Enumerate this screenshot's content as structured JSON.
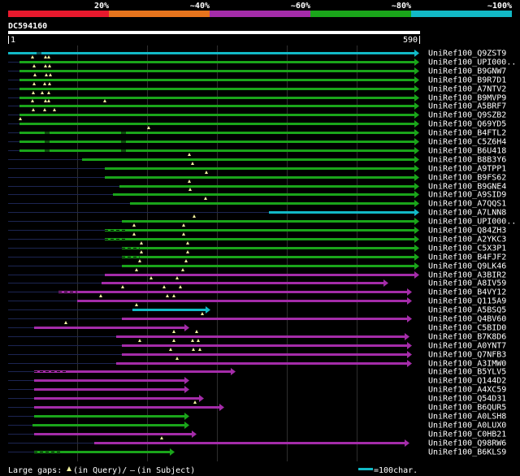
{
  "legend": {
    "scale_labels": [
      "20%",
      "~40%",
      "~60%",
      "~80%",
      "~100%"
    ],
    "scale_colors": [
      "#e8192d",
      "#e6741d",
      "#a42ca9",
      "#1aa51a",
      "#12b9c6"
    ]
  },
  "query": {
    "name": "DC594160",
    "start": "1",
    "end": "590"
  },
  "colors": {
    "cyan": "#12b9c6",
    "green": "#1aa51a",
    "magenta": "#a42ca9",
    "dim": "#1c2552",
    "grid": "#2e2e2e",
    "marker": "#f2f2a0"
  },
  "hits": [
    {
      "label": "UniRef100_Q9ZST9",
      "color": "cyan",
      "start": 10,
      "end": 516,
      "dim": [],
      "gaps": [],
      "tick": [
        48
      ],
      "tri": []
    },
    {
      "label": "UniRef100_UPI000..",
      "color": "green",
      "start": 24,
      "end": 516,
      "dim": [
        [
          10,
          24
        ]
      ],
      "gaps": [],
      "tick": [],
      "tri": [
        40,
        56,
        60
      ]
    },
    {
      "label": "UniRef100_B9GNW7",
      "color": "green",
      "start": 24,
      "end": 516,
      "dim": [
        [
          10,
          24
        ]
      ],
      "gaps": [],
      "tick": [],
      "tri": [
        42,
        56,
        61
      ]
    },
    {
      "label": "UniRef100_B9R7D1",
      "color": "green",
      "start": 24,
      "end": 516,
      "dim": [
        [
          10,
          24
        ]
      ],
      "gaps": [],
      "tick": [],
      "tri": [
        43,
        57,
        62
      ]
    },
    {
      "label": "UniRef100_A7NTV2",
      "color": "green",
      "start": 24,
      "end": 516,
      "dim": [
        [
          10,
          24
        ]
      ],
      "gaps": [],
      "tick": [],
      "tri": [
        42,
        55,
        61
      ]
    },
    {
      "label": "UniRef100_B9MVP9",
      "color": "green",
      "start": 24,
      "end": 516,
      "dim": [
        [
          10,
          24
        ]
      ],
      "gaps": [],
      "tick": [],
      "tri": [
        41,
        52,
        60
      ]
    },
    {
      "label": "UniRef100_A5BRF7",
      "color": "green",
      "start": 24,
      "end": 516,
      "dim": [
        [
          10,
          24
        ]
      ],
      "gaps": [],
      "tick": [],
      "tri": [
        40,
        56,
        60,
        129
      ]
    },
    {
      "label": "UniRef100_Q9SZB2",
      "color": "green",
      "start": 24,
      "end": 516,
      "dim": [
        [
          10,
          24
        ]
      ],
      "gaps": [],
      "tick": [],
      "tri": [
        41,
        55,
        67
      ]
    },
    {
      "label": "UniRef100_Q69YD5",
      "color": "green",
      "start": 24,
      "end": 516,
      "dim": [
        [
          10,
          24
        ]
      ],
      "gaps": [],
      "tick": [],
      "tri": [
        25
      ]
    },
    {
      "label": "UniRef100_B4FTL2",
      "color": "green",
      "start": 24,
      "end": 516,
      "dim": [
        [
          10,
          24
        ]
      ],
      "gaps": [],
      "tick": [
        58,
        152
      ],
      "tri": [
        183
      ]
    },
    {
      "label": "UniRef100_C5Z6H4",
      "color": "green",
      "start": 24,
      "end": 516,
      "dim": [
        [
          10,
          24
        ]
      ],
      "gaps": [],
      "tick": [
        58,
        152
      ],
      "tri": []
    },
    {
      "label": "UniRef100_B6U418",
      "color": "green",
      "start": 24,
      "end": 516,
      "dim": [
        [
          10,
          24
        ]
      ],
      "gaps": [],
      "tick": [
        58,
        152
      ],
      "tri": []
    },
    {
      "label": "UniRef100_B8B3Y6",
      "color": "green",
      "start": 101,
      "end": 516,
      "dim": [
        [
          10,
          101
        ]
      ],
      "gaps": [],
      "tick": [],
      "tri": [
        233
      ]
    },
    {
      "label": "UniRef100_A9TPP1",
      "color": "green",
      "start": 129,
      "end": 516,
      "dim": [
        [
          10,
          129
        ]
      ],
      "gaps": [],
      "tick": [],
      "tri": [
        237
      ]
    },
    {
      "label": "UniRef100_B9FS62",
      "color": "green",
      "start": 129,
      "end": 516,
      "dim": [
        [
          10,
          129
        ]
      ],
      "gaps": [],
      "tick": [],
      "tri": [
        254
      ]
    },
    {
      "label": "UniRef100_B9GNE4",
      "color": "green",
      "start": 147,
      "end": 516,
      "dim": [
        [
          10,
          147
        ]
      ],
      "gaps": [],
      "tick": [],
      "tri": [
        233
      ]
    },
    {
      "label": "UniRef100_A9SID9",
      "color": "green",
      "start": 139,
      "end": 516,
      "dim": [
        [
          10,
          139
        ]
      ],
      "gaps": [],
      "tick": [],
      "tri": [
        234
      ]
    },
    {
      "label": "UniRef100_A7QQS1",
      "color": "green",
      "start": 160,
      "end": 516,
      "dim": [
        [
          10,
          160
        ]
      ],
      "gaps": [],
      "tick": [],
      "tri": [
        253
      ]
    },
    {
      "label": "UniRef100_A7LNN8",
      "color": "cyan",
      "start": 331,
      "end": 516,
      "dim": [
        [
          10,
          331
        ]
      ],
      "gaps": [],
      "tick": [],
      "tri": []
    },
    {
      "label": "UniRef100_UPI000..",
      "color": "green",
      "start": 150,
      "end": 516,
      "dim": [
        [
          10,
          150
        ]
      ],
      "gaps": [],
      "tick": [],
      "tri": [
        239
      ]
    },
    {
      "label": "UniRef100_Q84ZH3",
      "color": "green",
      "start": 129,
      "end": 516,
      "dim": [
        [
          10,
          129
        ]
      ],
      "gaps": [
        [
          129,
          157
        ]
      ],
      "tick": [],
      "tri": [
        165,
        226
      ]
    },
    {
      "label": "UniRef100_A2YKC3",
      "color": "green",
      "start": 129,
      "end": 516,
      "dim": [
        [
          10,
          129
        ]
      ],
      "gaps": [
        [
          129,
          157
        ]
      ],
      "tick": [],
      "tri": [
        165,
        226
      ]
    },
    {
      "label": "UniRef100_C5X3P1",
      "color": "green",
      "start": 150,
      "end": 516,
      "dim": [
        [
          10,
          150
        ]
      ],
      "gaps": [
        [
          150,
          172
        ]
      ],
      "tick": [],
      "tri": [
        174,
        231
      ]
    },
    {
      "label": "UniRef100_B4FJF2",
      "color": "green",
      "start": 150,
      "end": 516,
      "dim": [
        [
          10,
          150
        ]
      ],
      "gaps": [
        [
          150,
          172
        ]
      ],
      "tick": [],
      "tri": [
        174,
        231
      ]
    },
    {
      "label": "UniRef100_Q9LK46",
      "color": "green",
      "start": 150,
      "end": 516,
      "dim": [
        [
          10,
          150
        ]
      ],
      "gaps": [],
      "tick": [],
      "tri": [
        172,
        229
      ]
    },
    {
      "label": "UniRef100_A3BIR2",
      "color": "magenta",
      "start": 129,
      "end": 516,
      "dim": [
        [
          10,
          129
        ]
      ],
      "gaps": [],
      "tick": [],
      "tri": [
        168,
        225
      ]
    },
    {
      "label": "UniRef100_A8IV59",
      "color": "magenta",
      "start": 125,
      "end": 478,
      "dim": [
        [
          10,
          125
        ]
      ],
      "gaps": [],
      "tick": [],
      "tri": [
        186,
        218
      ]
    },
    {
      "label": "UniRef100_B4VY12",
      "color": "magenta",
      "start": 72,
      "end": 507,
      "dim": [
        [
          10,
          72
        ]
      ],
      "gaps": [
        [
          72,
          95
        ]
      ],
      "tick": [],
      "tri": [
        151,
        202,
        222
      ]
    },
    {
      "label": "UniRef100_Q115A9",
      "color": "magenta",
      "start": 95,
      "end": 507,
      "dim": [
        [
          10,
          95
        ]
      ],
      "gaps": [],
      "tick": [],
      "tri": [
        124,
        206,
        214
      ]
    },
    {
      "label": "UniRef100_A5BSQ5",
      "color": "cyan",
      "start": 163,
      "end": 259,
      "dim": [
        [
          10,
          163
        ]
      ],
      "gaps": [],
      "tick": [],
      "tri": [
        168
      ]
    },
    {
      "label": "UniRef100_Q4BV60",
      "color": "magenta",
      "start": 150,
      "end": 507,
      "dim": [
        [
          10,
          150
        ]
      ],
      "gaps": [],
      "tick": [],
      "tri": [
        249
      ]
    },
    {
      "label": "UniRef100_C5BID0",
      "color": "magenta",
      "start": 42,
      "end": 233,
      "dim": [
        [
          10,
          42
        ]
      ],
      "gaps": [],
      "tick": [],
      "tri": [
        81
      ]
    },
    {
      "label": "UniRef100_B7K8D6",
      "color": "magenta",
      "start": 143,
      "end": 504,
      "dim": [
        [
          10,
          143
        ]
      ],
      "gaps": [],
      "tick": [],
      "tri": [
        214,
        242
      ]
    },
    {
      "label": "UniRef100_A0YNT7",
      "color": "magenta",
      "start": 150,
      "end": 507,
      "dim": [
        [
          10,
          150
        ]
      ],
      "gaps": [],
      "tick": [],
      "tri": [
        172,
        214,
        237,
        244
      ]
    },
    {
      "label": "UniRef100_Q7NFB3",
      "color": "magenta",
      "start": 150,
      "end": 507,
      "dim": [
        [
          10,
          150
        ]
      ],
      "gaps": [],
      "tick": [],
      "tri": [
        210,
        238,
        246
      ]
    },
    {
      "label": "UniRef100_A3IMW0",
      "color": "magenta",
      "start": 143,
      "end": 507,
      "dim": [
        [
          10,
          143
        ]
      ],
      "gaps": [],
      "tick": [],
      "tri": [
        218
      ]
    },
    {
      "label": "UniRef100_B5YLV5",
      "color": "magenta",
      "start": 42,
      "end": 290,
      "dim": [
        [
          10,
          42
        ]
      ],
      "gaps": [
        [
          42,
          82
        ]
      ],
      "tick": [],
      "tri": []
    },
    {
      "label": "UniRef100_Q144D2",
      "color": "magenta",
      "start": 42,
      "end": 233,
      "dim": [
        [
          10,
          42
        ]
      ],
      "gaps": [],
      "tick": [],
      "tri": []
    },
    {
      "label": "UniRef100_A4XC59",
      "color": "magenta",
      "start": 42,
      "end": 233,
      "dim": [
        [
          10,
          42
        ]
      ],
      "gaps": [],
      "tick": [],
      "tri": []
    },
    {
      "label": "UniRef100_Q54D31",
      "color": "magenta",
      "start": 42,
      "end": 251,
      "dim": [
        [
          10,
          42
        ]
      ],
      "gaps": [],
      "tick": [],
      "tri": []
    },
    {
      "label": "UniRef100_B6QUR5",
      "color": "magenta",
      "start": 42,
      "end": 276,
      "dim": [
        [
          10,
          42
        ]
      ],
      "gaps": [],
      "tick": [],
      "tri": [
        240
      ]
    },
    {
      "label": "UniRef100_A0LSH8",
      "color": "green",
      "start": 42,
      "end": 233,
      "dim": [
        [
          10,
          42
        ]
      ],
      "gaps": [],
      "tick": [],
      "tri": []
    },
    {
      "label": "UniRef100_A0LUX0",
      "color": "green",
      "start": 40,
      "end": 233,
      "dim": [
        [
          10,
          40
        ]
      ],
      "gaps": [],
      "tick": [],
      "tri": []
    },
    {
      "label": "UniRef100_C0HB21",
      "color": "magenta",
      "start": 42,
      "end": 242,
      "dim": [
        [
          10,
          42
        ]
      ],
      "gaps": [],
      "tick": [],
      "tri": []
    },
    {
      "label": "UniRef100_Q98RW6",
      "color": "magenta",
      "start": 116,
      "end": 504,
      "dim": [
        [
          10,
          116
        ]
      ],
      "gaps": [],
      "tick": [],
      "tri": [
        199
      ]
    },
    {
      "label": "UniRef100_B6KLS9",
      "color": "green",
      "start": 42,
      "end": 215,
      "dim": [
        [
          10,
          42
        ]
      ],
      "gaps": [
        [
          42,
          76
        ]
      ],
      "tick": [],
      "tri": []
    }
  ],
  "footer": {
    "gap_prefix": "Large gaps:",
    "gap_query": "(in Query)/",
    "gap_dash": "–",
    "gap_subject": "(in Subject)",
    "scale_text": "=100char."
  }
}
